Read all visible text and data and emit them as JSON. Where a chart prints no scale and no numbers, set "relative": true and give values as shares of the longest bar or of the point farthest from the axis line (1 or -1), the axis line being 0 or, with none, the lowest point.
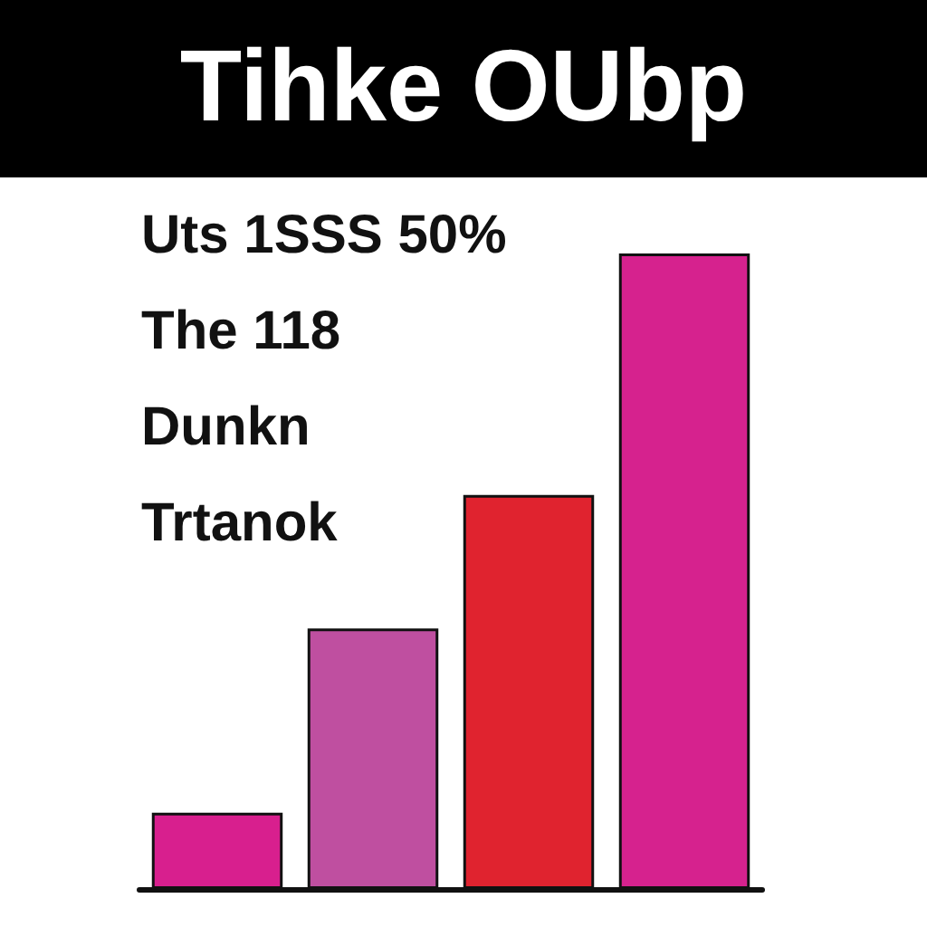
{
  "chart_data": {
    "type": "bar",
    "title": "Tihke OUbp",
    "relative": true,
    "categories": [
      null,
      null,
      null,
      null
    ],
    "series": [
      {
        "values": [
          0.12,
          0.41,
          0.62,
          1
        ],
        "colors": [
          "#d81f8e",
          "#bf4fa0",
          "#e0232f",
          "#d6228e"
        ]
      }
    ],
    "annotations": [
      "Uts 1SSS 50%",
      "The 118",
      "Dunkn",
      "Trtanok"
    ]
  }
}
